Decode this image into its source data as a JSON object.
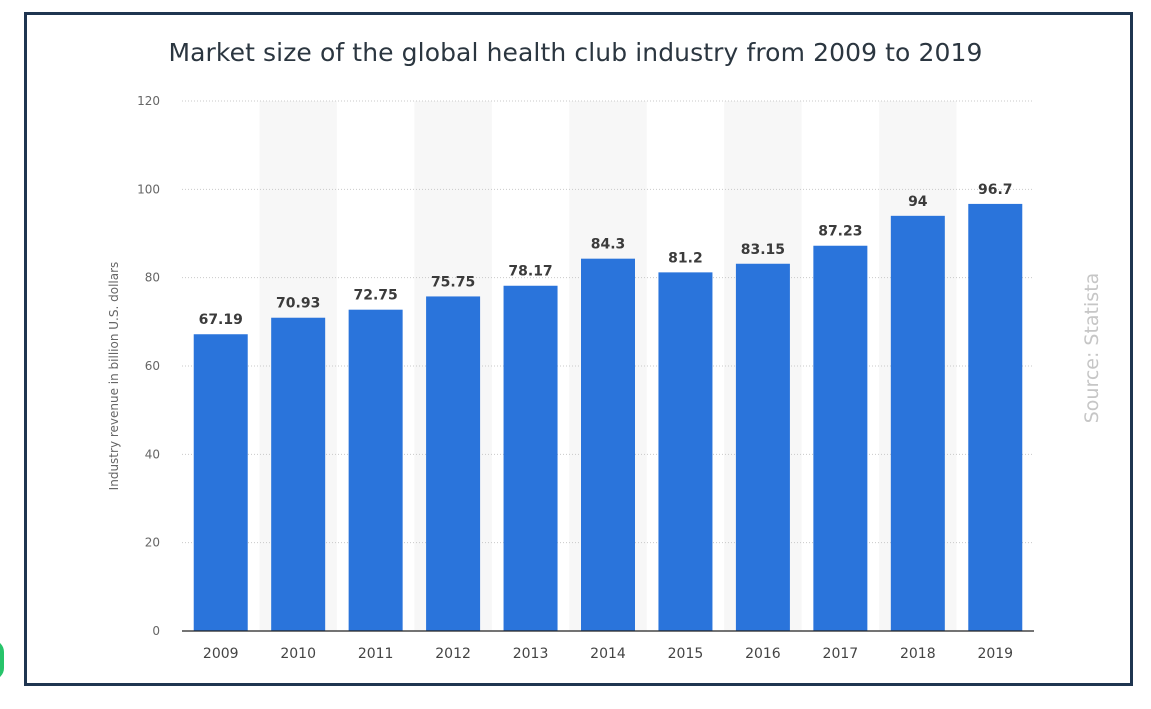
{
  "chart_data": {
    "type": "bar",
    "title": "Market size of the global health club industry from 2009 to 2019",
    "ylabel": "Industry revenue in billion U.S. dollars",
    "xlabel": "",
    "categories": [
      "2009",
      "2010",
      "2011",
      "2012",
      "2013",
      "2014",
      "2015",
      "2016",
      "2017",
      "2018",
      "2019"
    ],
    "values": [
      67.19,
      70.93,
      72.75,
      75.75,
      78.17,
      84.3,
      81.2,
      83.15,
      87.23,
      94,
      96.7
    ],
    "value_labels": [
      "67.19",
      "70.93",
      "72.75",
      "75.75",
      "78.17",
      "84.3",
      "81.2",
      "83.15",
      "87.23",
      "94",
      "96.7"
    ],
    "ylim": [
      0,
      120
    ],
    "yticks": [
      "0",
      "20",
      "40",
      "60",
      "80",
      "100",
      "120"
    ],
    "grid": true,
    "bar_color": "#2a74db",
    "source": "Source: Statista"
  }
}
